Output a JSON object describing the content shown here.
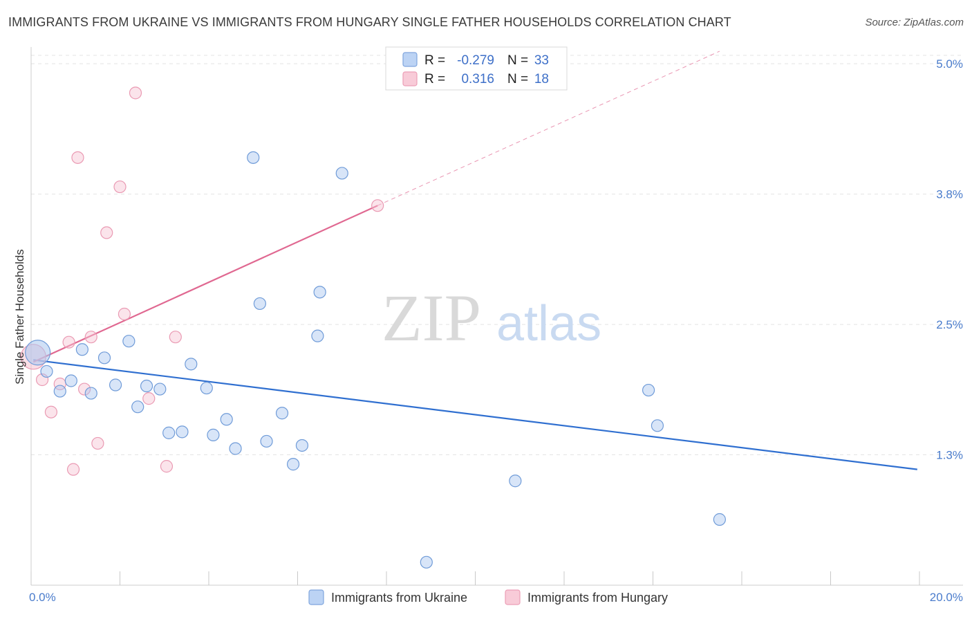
{
  "title": "IMMIGRANTS FROM UKRAINE VS IMMIGRANTS FROM HUNGARY SINGLE FATHER HOUSEHOLDS CORRELATION CHART",
  "source": "Source: ZipAtlas.com",
  "watermark": {
    "zip": "ZIP",
    "atlas": "atlas"
  },
  "chart_data": {
    "type": "scatter",
    "title": "IMMIGRANTS FROM UKRAINE VS IMMIGRANTS FROM HUNGARY SINGLE FATHER HOUSEHOLDS CORRELATION CHART",
    "xlabel": "",
    "ylabel": "Single Father Households",
    "xlim": [
      0,
      20
    ],
    "ylim": [
      0,
      5.2
    ],
    "x_tick_labels": [
      "0.0%",
      "20.0%"
    ],
    "y_ticks": [
      {
        "value": 1.25,
        "label": "1.3%"
      },
      {
        "value": 2.5,
        "label": "2.5%"
      },
      {
        "value": 3.75,
        "label": "3.8%"
      },
      {
        "value": 5.0,
        "label": "5.0%"
      }
    ],
    "legend": {
      "rows": [
        {
          "r_label": "R =",
          "r_value": "-0.279",
          "n_label": "N =",
          "n_value": "33"
        },
        {
          "r_label": "R =",
          "r_value": "0.316",
          "n_label": "N =",
          "n_value": "18"
        }
      ]
    },
    "series": [
      {
        "name": "Immigrants from Ukraine",
        "color": "#a9c6ef",
        "stroke": "#6f9bd8",
        "line_color": "#2f6fd0",
        "trend": {
          "x": [
            0.05,
            19.95
          ],
          "y": [
            2.16,
            1.11
          ]
        },
        "points": [
          {
            "x": 0.15,
            "y": 2.23,
            "big": true
          },
          {
            "x": 0.35,
            "y": 2.05
          },
          {
            "x": 0.65,
            "y": 1.86
          },
          {
            "x": 0.9,
            "y": 1.96
          },
          {
            "x": 1.15,
            "y": 2.26
          },
          {
            "x": 1.35,
            "y": 1.84
          },
          {
            "x": 1.65,
            "y": 2.18
          },
          {
            "x": 1.9,
            "y": 1.92
          },
          {
            "x": 2.2,
            "y": 2.34
          },
          {
            "x": 2.4,
            "y": 1.71
          },
          {
            "x": 2.6,
            "y": 1.91
          },
          {
            "x": 2.9,
            "y": 1.88
          },
          {
            "x": 3.1,
            "y": 1.46
          },
          {
            "x": 3.4,
            "y": 1.47
          },
          {
            "x": 3.6,
            "y": 2.12
          },
          {
            "x": 3.95,
            "y": 1.89
          },
          {
            "x": 4.1,
            "y": 1.44
          },
          {
            "x": 4.4,
            "y": 1.59
          },
          {
            "x": 4.6,
            "y": 1.31
          },
          {
            "x": 5.0,
            "y": 4.1
          },
          {
            "x": 5.15,
            "y": 2.7
          },
          {
            "x": 5.3,
            "y": 1.38
          },
          {
            "x": 5.65,
            "y": 1.65
          },
          {
            "x": 5.9,
            "y": 1.16
          },
          {
            "x": 6.1,
            "y": 1.34
          },
          {
            "x": 6.45,
            "y": 2.39
          },
          {
            "x": 6.5,
            "y": 2.81
          },
          {
            "x": 7.0,
            "y": 3.95
          },
          {
            "x": 8.9,
            "y": 0.22
          },
          {
            "x": 10.9,
            "y": 1.0
          },
          {
            "x": 13.9,
            "y": 1.87
          },
          {
            "x": 14.1,
            "y": 1.53
          },
          {
            "x": 15.5,
            "y": 0.63
          }
        ]
      },
      {
        "name": "Immigrants from Hungary",
        "color": "#f6c3d2",
        "stroke": "#ea9ab3",
        "line_color": "#e06891",
        "trend": {
          "x": [
            0.05,
            7.8
          ],
          "y": [
            2.14,
            3.64
          ]
        },
        "trend_dashed": {
          "x": [
            7.8,
            15.5
          ],
          "y": [
            3.64,
            5.12
          ]
        },
        "points": [
          {
            "x": 0.05,
            "y": 2.19,
            "big": true
          },
          {
            "x": 0.25,
            "y": 1.97
          },
          {
            "x": 0.45,
            "y": 1.66
          },
          {
            "x": 0.65,
            "y": 1.93
          },
          {
            "x": 0.85,
            "y": 2.33
          },
          {
            "x": 0.95,
            "y": 1.11
          },
          {
            "x": 1.05,
            "y": 4.1
          },
          {
            "x": 1.2,
            "y": 1.88
          },
          {
            "x": 1.35,
            "y": 2.38
          },
          {
            "x": 1.5,
            "y": 1.36
          },
          {
            "x": 1.7,
            "y": 3.38
          },
          {
            "x": 2.0,
            "y": 3.82
          },
          {
            "x": 2.1,
            "y": 2.6
          },
          {
            "x": 2.35,
            "y": 4.72
          },
          {
            "x": 2.65,
            "y": 1.79
          },
          {
            "x": 3.05,
            "y": 1.14
          },
          {
            "x": 3.25,
            "y": 2.38
          },
          {
            "x": 7.8,
            "y": 3.64
          }
        ]
      }
    ]
  }
}
